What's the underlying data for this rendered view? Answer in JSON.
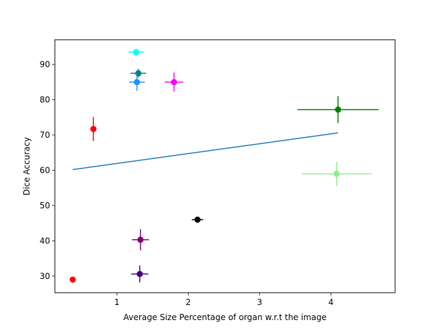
{
  "chart_data": {
    "type": "scatter",
    "xlabel": "Average Size Percentage of organ w.r.t the image",
    "ylabel": "Dice Accuracy",
    "xlim": [
      0.13,
      4.9
    ],
    "ylim": [
      25.3,
      97.0
    ],
    "xticks": [
      1,
      2,
      3,
      4
    ],
    "yticks": [
      30,
      40,
      50,
      60,
      70,
      80,
      90
    ],
    "grid": false,
    "points": [
      {
        "x": 1.27,
        "y": 93.5,
        "xerr": 0.11,
        "yerr": 0.0,
        "color": "#00ffff"
      },
      {
        "x": 1.3,
        "y": 87.5,
        "xerr": 0.11,
        "yerr": 1.2,
        "color": "#008080"
      },
      {
        "x": 1.28,
        "y": 85.0,
        "xerr": 0.11,
        "yerr": 2.5,
        "color": "#1e90ff"
      },
      {
        "x": 1.8,
        "y": 85.0,
        "xerr": 0.13,
        "yerr": 2.7,
        "color": "#ff00ff"
      },
      {
        "x": 4.1,
        "y": 77.2,
        "xerr": 0.57,
        "yerr": 3.8,
        "color": "#008000"
      },
      {
        "x": 0.67,
        "y": 71.7,
        "xerr": 0.04,
        "yerr": 3.4,
        "color": "#ff0000"
      },
      {
        "x": 4.08,
        "y": 59.0,
        "xerr": 0.49,
        "yerr": 3.4,
        "color": "#90ee90"
      },
      {
        "x": 2.13,
        "y": 46.0,
        "xerr": 0.08,
        "yerr": 0.7,
        "color": "#000000"
      },
      {
        "x": 1.33,
        "y": 40.3,
        "xerr": 0.12,
        "yerr": 3.0,
        "color": "#800080"
      },
      {
        "x": 1.32,
        "y": 30.6,
        "xerr": 0.12,
        "yerr": 2.4,
        "color": "#4b0082"
      },
      {
        "x": 0.38,
        "y": 29.0,
        "xerr": 0.0,
        "yerr": 0.0,
        "color": "#ff0000"
      }
    ],
    "trendline": {
      "x": [
        0.38,
        4.1
      ],
      "y": [
        60.2,
        70.6
      ],
      "color": "#1f77b4"
    }
  }
}
